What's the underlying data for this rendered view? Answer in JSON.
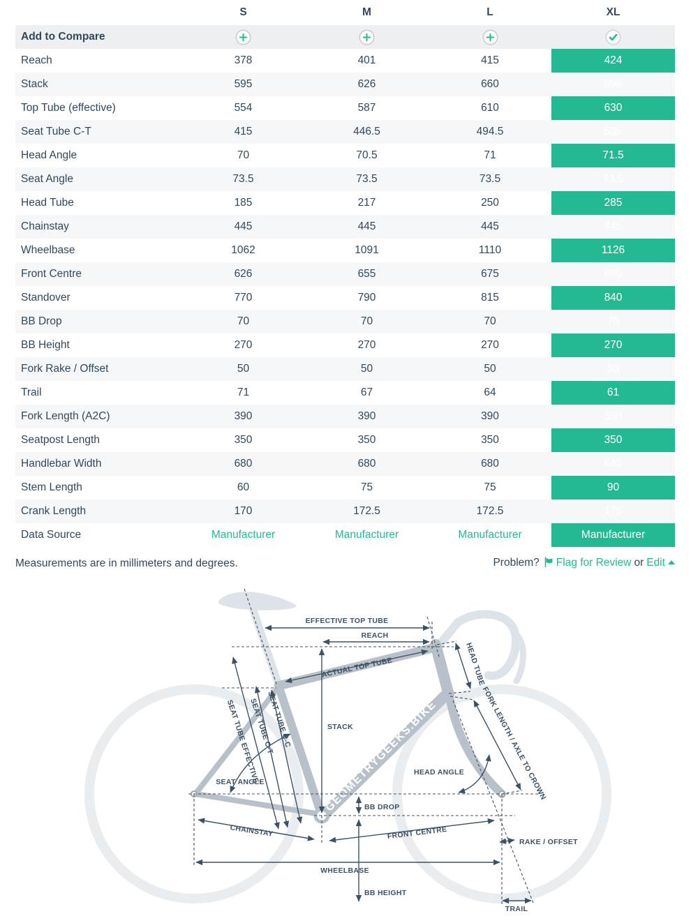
{
  "table": {
    "size_headers": [
      "S",
      "M",
      "L",
      "XL"
    ],
    "selected_size": "XL",
    "compare_label": "Add to Compare",
    "rows": [
      {
        "label": "Reach",
        "values": [
          "378",
          "401",
          "415",
          "424"
        ]
      },
      {
        "label": "Stack",
        "values": [
          "595",
          "626",
          "660",
          "696"
        ]
      },
      {
        "label": "Top Tube (effective)",
        "values": [
          "554",
          "587",
          "610",
          "630"
        ]
      },
      {
        "label": "Seat Tube C-T",
        "values": [
          "415",
          "446.5",
          "494.5",
          "535"
        ]
      },
      {
        "label": "Head Angle",
        "values": [
          "70",
          "70.5",
          "71",
          "71.5"
        ]
      },
      {
        "label": "Seat Angle",
        "values": [
          "73.5",
          "73.5",
          "73.5",
          "73.5"
        ]
      },
      {
        "label": "Head Tube",
        "values": [
          "185",
          "217",
          "250",
          "285"
        ]
      },
      {
        "label": "Chainstay",
        "values": [
          "445",
          "445",
          "445",
          "445"
        ]
      },
      {
        "label": "Wheelbase",
        "values": [
          "1062",
          "1091",
          "1110",
          "1126"
        ]
      },
      {
        "label": "Front Centre",
        "values": [
          "626",
          "655",
          "675",
          "690"
        ]
      },
      {
        "label": "Standover",
        "values": [
          "770",
          "790",
          "815",
          "840"
        ]
      },
      {
        "label": "BB Drop",
        "values": [
          "70",
          "70",
          "70",
          "70"
        ]
      },
      {
        "label": "BB Height",
        "values": [
          "270",
          "270",
          "270",
          "270"
        ]
      },
      {
        "label": "Fork Rake / Offset",
        "values": [
          "50",
          "50",
          "50",
          "50"
        ]
      },
      {
        "label": "Trail",
        "values": [
          "71",
          "67",
          "64",
          "61"
        ]
      },
      {
        "label": "Fork Length (A2C)",
        "values": [
          "390",
          "390",
          "390",
          "390"
        ]
      },
      {
        "label": "Seatpost Length",
        "values": [
          "350",
          "350",
          "350",
          "350"
        ]
      },
      {
        "label": "Handlebar Width",
        "values": [
          "680",
          "680",
          "680",
          "680"
        ]
      },
      {
        "label": "Stem Length",
        "values": [
          "60",
          "75",
          "75",
          "90"
        ]
      },
      {
        "label": "Crank Length",
        "values": [
          "170",
          "172.5",
          "172.5",
          "175"
        ]
      },
      {
        "label": "Data Source",
        "values": [
          "Manufacturer",
          "Manufacturer",
          "Manufacturer",
          "Manufacturer"
        ],
        "is_link": true
      }
    ]
  },
  "icons": {
    "add_compare": "plus-circle-icon",
    "selected": "check-circle-icon",
    "flag": "flag-icon",
    "edit_caret": "caret-up-icon"
  },
  "footer": {
    "note": "Measurements are in millimeters and degrees.",
    "problem_label": "Problem?",
    "flag_link": "Flag for Review",
    "conjunction": "or",
    "edit_link": "Edit"
  },
  "diagram": {
    "watermark": "GEOMETRYGEEKS.BIKE",
    "labels": {
      "effective_top_tube": "EFFECTIVE TOP TUBE",
      "reach": "REACH",
      "actual_top_tube": "ACTUAL TOP TUBE",
      "stack": "STACK",
      "head_tube": "HEAD TUBE",
      "fork_length": "FORK LENGTH / AXLE TO CROWN",
      "seat_tube_cc": "SEAT TUBE C-C",
      "seat_tube_ct": "SEAT TUBE C-T",
      "seat_tube_effective": "SEAT TUBE EFFECTIVE",
      "seat_angle": "SEAT ANGLE",
      "head_angle": "HEAD ANGLE",
      "bb_drop": "BB DROP",
      "chainstay": "CHAINSTAY",
      "front_centre": "FRONT CENTRE",
      "rake_offset": "RAKE / OFFSET",
      "wheelbase": "WHEELBASE",
      "bb_height": "BB HEIGHT",
      "trail": "TRAIL"
    }
  },
  "colors": {
    "accent": "#23ba93",
    "text": "#33475b",
    "row_stripe": "#f6f7f8",
    "compare_row_bg": "#edeff1",
    "diagram_line": "#3d5165",
    "frame_gray": "#b8c1ca",
    "silhouette_gray": "#dde3e8",
    "wheel_gray": "#eaedf0"
  }
}
